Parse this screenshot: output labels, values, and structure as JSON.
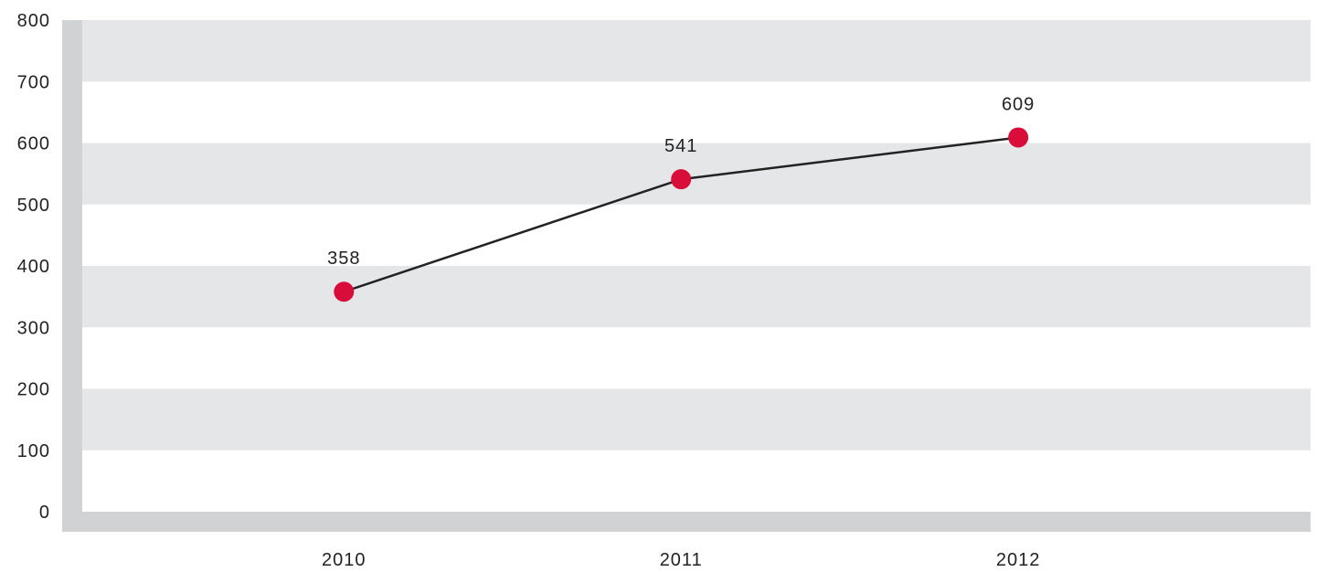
{
  "chart_data": {
    "type": "line",
    "categories": [
      "2010",
      "2011",
      "2012"
    ],
    "series": [
      {
        "values": [
          358,
          541,
          609
        ]
      }
    ],
    "data_labels": [
      "358",
      "541",
      "609"
    ],
    "y_ticks": [
      "0",
      "100",
      "200",
      "300",
      "400",
      "500",
      "600",
      "700",
      "800"
    ],
    "ylim": [
      0,
      800
    ],
    "title": "",
    "xlabel": "",
    "ylabel": "",
    "grid": "alternating horizontal bands",
    "legend": "none",
    "colors": {
      "line": "#222222",
      "marker": "#d90d3a",
      "band": "#e5e6e8",
      "frame": "#d1d2d4"
    }
  }
}
